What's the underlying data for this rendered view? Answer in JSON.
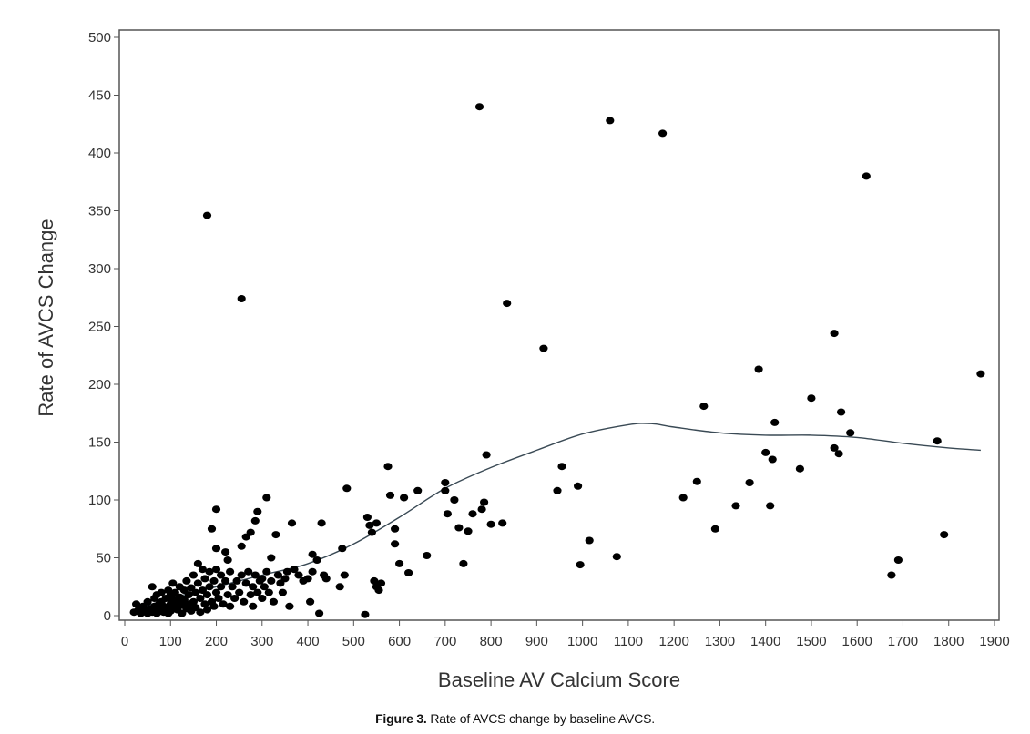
{
  "chart_data": {
    "type": "scatter",
    "xlabel": "Baseline AV Calcium Score",
    "ylabel": "Rate of AVCS Change",
    "xlim": [
      0,
      1900
    ],
    "ylim": [
      0,
      500
    ],
    "x_ticks": [
      0,
      100,
      200,
      300,
      400,
      500,
      600,
      700,
      800,
      900,
      1000,
      1100,
      1200,
      1300,
      1400,
      1500,
      1600,
      1700,
      1800,
      1900
    ],
    "y_ticks": [
      0,
      50,
      100,
      150,
      200,
      250,
      300,
      350,
      400,
      450,
      500
    ],
    "grid": false,
    "legend": "none",
    "colors": {
      "points": "#000000",
      "trend": "#3a4a55",
      "frame": "#555555"
    },
    "series": [
      {
        "kind": "points",
        "points": [
          [
            20,
            3
          ],
          [
            25,
            10
          ],
          [
            30,
            5
          ],
          [
            35,
            2
          ],
          [
            40,
            8
          ],
          [
            45,
            4
          ],
          [
            50,
            12
          ],
          [
            50,
            2
          ],
          [
            55,
            6
          ],
          [
            60,
            25
          ],
          [
            60,
            3
          ],
          [
            65,
            15
          ],
          [
            65,
            8
          ],
          [
            70,
            2
          ],
          [
            70,
            18
          ],
          [
            75,
            10
          ],
          [
            75,
            5
          ],
          [
            80,
            20
          ],
          [
            80,
            12
          ],
          [
            85,
            3
          ],
          [
            85,
            8
          ],
          [
            90,
            15
          ],
          [
            90,
            6
          ],
          [
            95,
            22
          ],
          [
            95,
            2
          ],
          [
            100,
            18
          ],
          [
            100,
            10
          ],
          [
            100,
            4
          ],
          [
            105,
            28
          ],
          [
            105,
            14
          ],
          [
            110,
            8
          ],
          [
            110,
            20
          ],
          [
            115,
            5
          ],
          [
            115,
            12
          ],
          [
            120,
            25
          ],
          [
            120,
            16
          ],
          [
            125,
            9
          ],
          [
            125,
            2
          ],
          [
            130,
            22
          ],
          [
            130,
            14
          ],
          [
            135,
            6
          ],
          [
            135,
            30
          ],
          [
            140,
            18
          ],
          [
            140,
            10
          ],
          [
            145,
            24
          ],
          [
            145,
            4
          ],
          [
            150,
            35
          ],
          [
            150,
            12
          ],
          [
            155,
            20
          ],
          [
            155,
            7
          ],
          [
            160,
            45
          ],
          [
            160,
            28
          ],
          [
            165,
            15
          ],
          [
            165,
            3
          ],
          [
            170,
            40
          ],
          [
            170,
            22
          ],
          [
            175,
            10
          ],
          [
            175,
            32
          ],
          [
            180,
            18
          ],
          [
            180,
            5
          ],
          [
            185,
            38
          ],
          [
            185,
            25
          ],
          [
            190,
            12
          ],
          [
            190,
            75
          ],
          [
            195,
            30
          ],
          [
            195,
            8
          ],
          [
            200,
            92
          ],
          [
            200,
            58
          ],
          [
            200,
            40
          ],
          [
            200,
            20
          ],
          [
            205,
            15
          ],
          [
            210,
            35
          ],
          [
            210,
            25
          ],
          [
            215,
            10
          ],
          [
            220,
            55
          ],
          [
            220,
            30
          ],
          [
            225,
            48
          ],
          [
            225,
            18
          ],
          [
            230,
            38
          ],
          [
            230,
            8
          ],
          [
            235,
            25
          ],
          [
            240,
            15
          ],
          [
            245,
            30
          ],
          [
            250,
            20
          ],
          [
            255,
            60
          ],
          [
            255,
            35
          ],
          [
            260,
            12
          ],
          [
            265,
            68
          ],
          [
            265,
            28
          ],
          [
            270,
            38
          ],
          [
            275,
            72
          ],
          [
            275,
            18
          ],
          [
            280,
            25
          ],
          [
            280,
            8
          ],
          [
            285,
            82
          ],
          [
            285,
            35
          ],
          [
            290,
            90
          ],
          [
            290,
            20
          ],
          [
            295,
            30
          ],
          [
            300,
            15
          ],
          [
            300,
            32
          ],
          [
            305,
            25
          ],
          [
            310,
            102
          ],
          [
            310,
            38
          ],
          [
            315,
            20
          ],
          [
            320,
            50
          ],
          [
            320,
            30
          ],
          [
            325,
            12
          ],
          [
            330,
            70
          ],
          [
            335,
            35
          ],
          [
            340,
            28
          ],
          [
            345,
            20
          ],
          [
            350,
            32
          ],
          [
            355,
            38
          ],
          [
            360,
            8
          ],
          [
            365,
            80
          ],
          [
            370,
            40
          ],
          [
            380,
            35
          ],
          [
            390,
            30
          ],
          [
            400,
            32
          ],
          [
            405,
            12
          ],
          [
            410,
            53
          ],
          [
            410,
            38
          ],
          [
            420,
            48
          ],
          [
            425,
            2
          ],
          [
            430,
            80
          ],
          [
            435,
            35
          ],
          [
            440,
            32
          ],
          [
            470,
            25
          ],
          [
            475,
            58
          ],
          [
            480,
            35
          ],
          [
            485,
            110
          ],
          [
            525,
            1
          ],
          [
            530,
            85
          ],
          [
            535,
            78
          ],
          [
            540,
            72
          ],
          [
            545,
            30
          ],
          [
            550,
            80
          ],
          [
            550,
            25
          ],
          [
            555,
            22
          ],
          [
            560,
            28
          ],
          [
            575,
            129
          ],
          [
            580,
            104
          ],
          [
            590,
            75
          ],
          [
            590,
            62
          ],
          [
            600,
            45
          ],
          [
            610,
            102
          ],
          [
            620,
            37
          ],
          [
            640,
            108
          ],
          [
            660,
            52
          ],
          [
            700,
            115
          ],
          [
            700,
            108
          ],
          [
            705,
            88
          ],
          [
            720,
            100
          ],
          [
            730,
            76
          ],
          [
            740,
            45
          ],
          [
            750,
            73
          ],
          [
            760,
            88
          ],
          [
            775,
            440
          ],
          [
            780,
            92
          ],
          [
            785,
            98
          ],
          [
            790,
            139
          ],
          [
            800,
            79
          ],
          [
            825,
            80
          ],
          [
            835,
            270
          ],
          [
            915,
            231
          ],
          [
            945,
            108
          ],
          [
            955,
            129
          ],
          [
            990,
            112
          ],
          [
            995,
            44
          ],
          [
            1015,
            65
          ],
          [
            1060,
            428
          ],
          [
            1075,
            51
          ],
          [
            1175,
            417
          ],
          [
            1220,
            102
          ],
          [
            1250,
            116
          ],
          [
            1265,
            181
          ],
          [
            1290,
            75
          ],
          [
            1335,
            95
          ],
          [
            1365,
            115
          ],
          [
            1385,
            213
          ],
          [
            1400,
            141
          ],
          [
            1410,
            95
          ],
          [
            1415,
            135
          ],
          [
            1420,
            167
          ],
          [
            1475,
            127
          ],
          [
            1500,
            188
          ],
          [
            1550,
            145
          ],
          [
            1550,
            244
          ],
          [
            1560,
            140
          ],
          [
            1565,
            176
          ],
          [
            1585,
            158
          ],
          [
            1620,
            380
          ],
          [
            1675,
            35
          ],
          [
            1690,
            48
          ],
          [
            1775,
            151
          ],
          [
            1790,
            70
          ],
          [
            1870,
            209
          ],
          [
            180,
            346
          ],
          [
            255,
            274
          ]
        ]
      },
      {
        "kind": "smooth-line",
        "points": [
          [
            20,
            5
          ],
          [
            100,
            15
          ],
          [
            200,
            25
          ],
          [
            300,
            35
          ],
          [
            400,
            45
          ],
          [
            500,
            62
          ],
          [
            600,
            85
          ],
          [
            700,
            110
          ],
          [
            800,
            128
          ],
          [
            900,
            143
          ],
          [
            1000,
            157
          ],
          [
            1100,
            165
          ],
          [
            1150,
            166
          ],
          [
            1200,
            163
          ],
          [
            1300,
            158
          ],
          [
            1400,
            156
          ],
          [
            1500,
            156
          ],
          [
            1600,
            154
          ],
          [
            1700,
            149
          ],
          [
            1800,
            145
          ],
          [
            1870,
            143
          ]
        ]
      }
    ]
  },
  "caption": {
    "label": "Figure 3.",
    "text": "Rate of AVCS change by baseline AVCS."
  }
}
